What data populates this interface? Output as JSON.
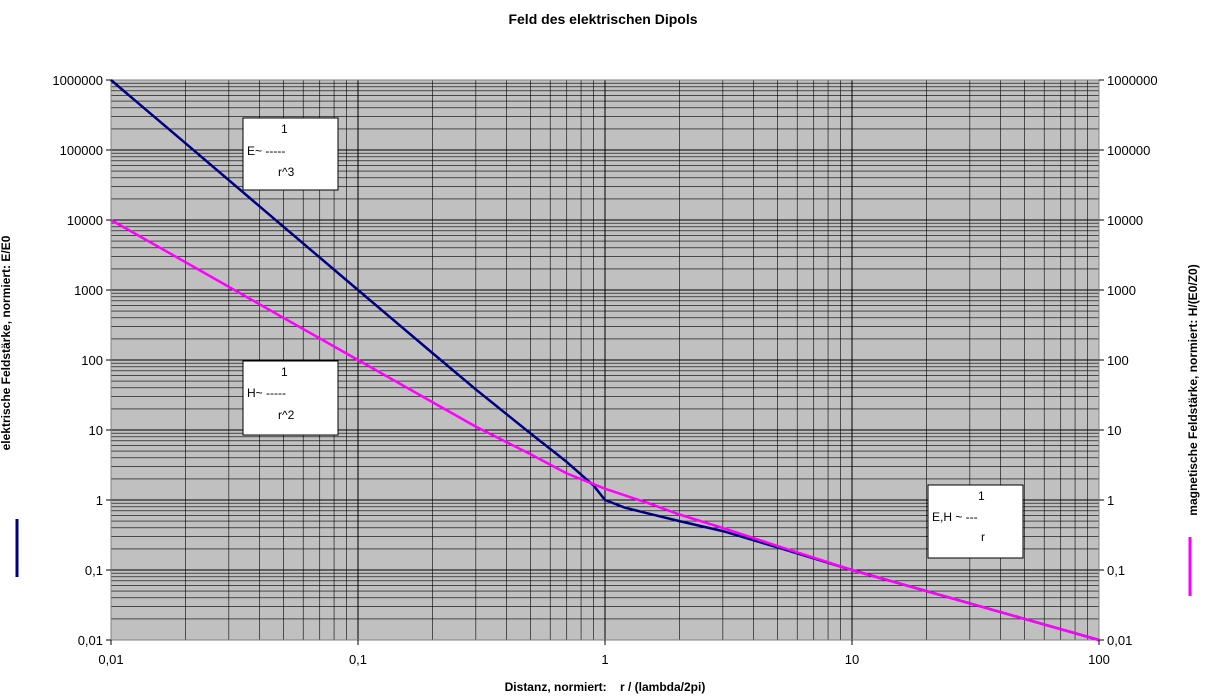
{
  "chart_data": {
    "type": "line",
    "title": "Feld des elektrischen Dipols",
    "xlabel": "Distanz, normiert:    r / (lambda/2pi)",
    "ylabel_left": "elektrische Feldstärke, normiert:  E/E0",
    "ylabel_right": "magnetische Feldstärke, normiert: H/(E0/Z0)",
    "x_scale": "log",
    "y_scale": "log",
    "xlim": [
      0.01,
      100
    ],
    "ylim": [
      0.01,
      1000000
    ],
    "x_ticks": [
      "0,01",
      "0,1",
      "1",
      "10",
      "100"
    ],
    "y_ticks": [
      "0,01",
      "0,1",
      "1",
      "10",
      "100",
      "1000",
      "10000",
      "100000",
      "1000000"
    ],
    "grid": true,
    "plot_background": "#c0c0c0",
    "series": [
      {
        "color": "#000080",
        "legend_side": "left",
        "x": [
          0.01,
          0.02,
          0.05,
          0.1,
          0.2,
          0.3,
          0.5,
          0.7,
          0.9,
          1,
          1.2,
          1.5,
          2,
          3,
          5,
          10,
          20,
          50,
          100
        ],
        "y": [
          1000000,
          125000,
          8000,
          1000,
          126,
          38,
          8.9,
          3.5,
          1.6,
          1.0,
          0.78,
          0.64,
          0.5,
          0.36,
          0.21,
          0.1,
          0.05,
          0.02,
          0.01
        ]
      },
      {
        "color": "#ff00ff",
        "legend_side": "right",
        "x": [
          0.01,
          0.02,
          0.05,
          0.1,
          0.2,
          0.3,
          0.5,
          0.7,
          1,
          1.5,
          2,
          3,
          5,
          10,
          20,
          50,
          100
        ],
        "y": [
          10000,
          2500,
          400,
          100,
          25,
          11.2,
          4.5,
          2.4,
          1.45,
          0.9,
          0.62,
          0.4,
          0.22,
          0.1,
          0.05,
          0.02,
          0.01
        ]
      }
    ],
    "annotations": [
      {
        "lines": [
          "1",
          "E~ -----",
          "r^3"
        ]
      },
      {
        "lines": [
          "1",
          "H~ -----",
          "r^2"
        ]
      },
      {
        "lines": [
          "1",
          "E,H ~ ---",
          "r"
        ]
      }
    ]
  }
}
